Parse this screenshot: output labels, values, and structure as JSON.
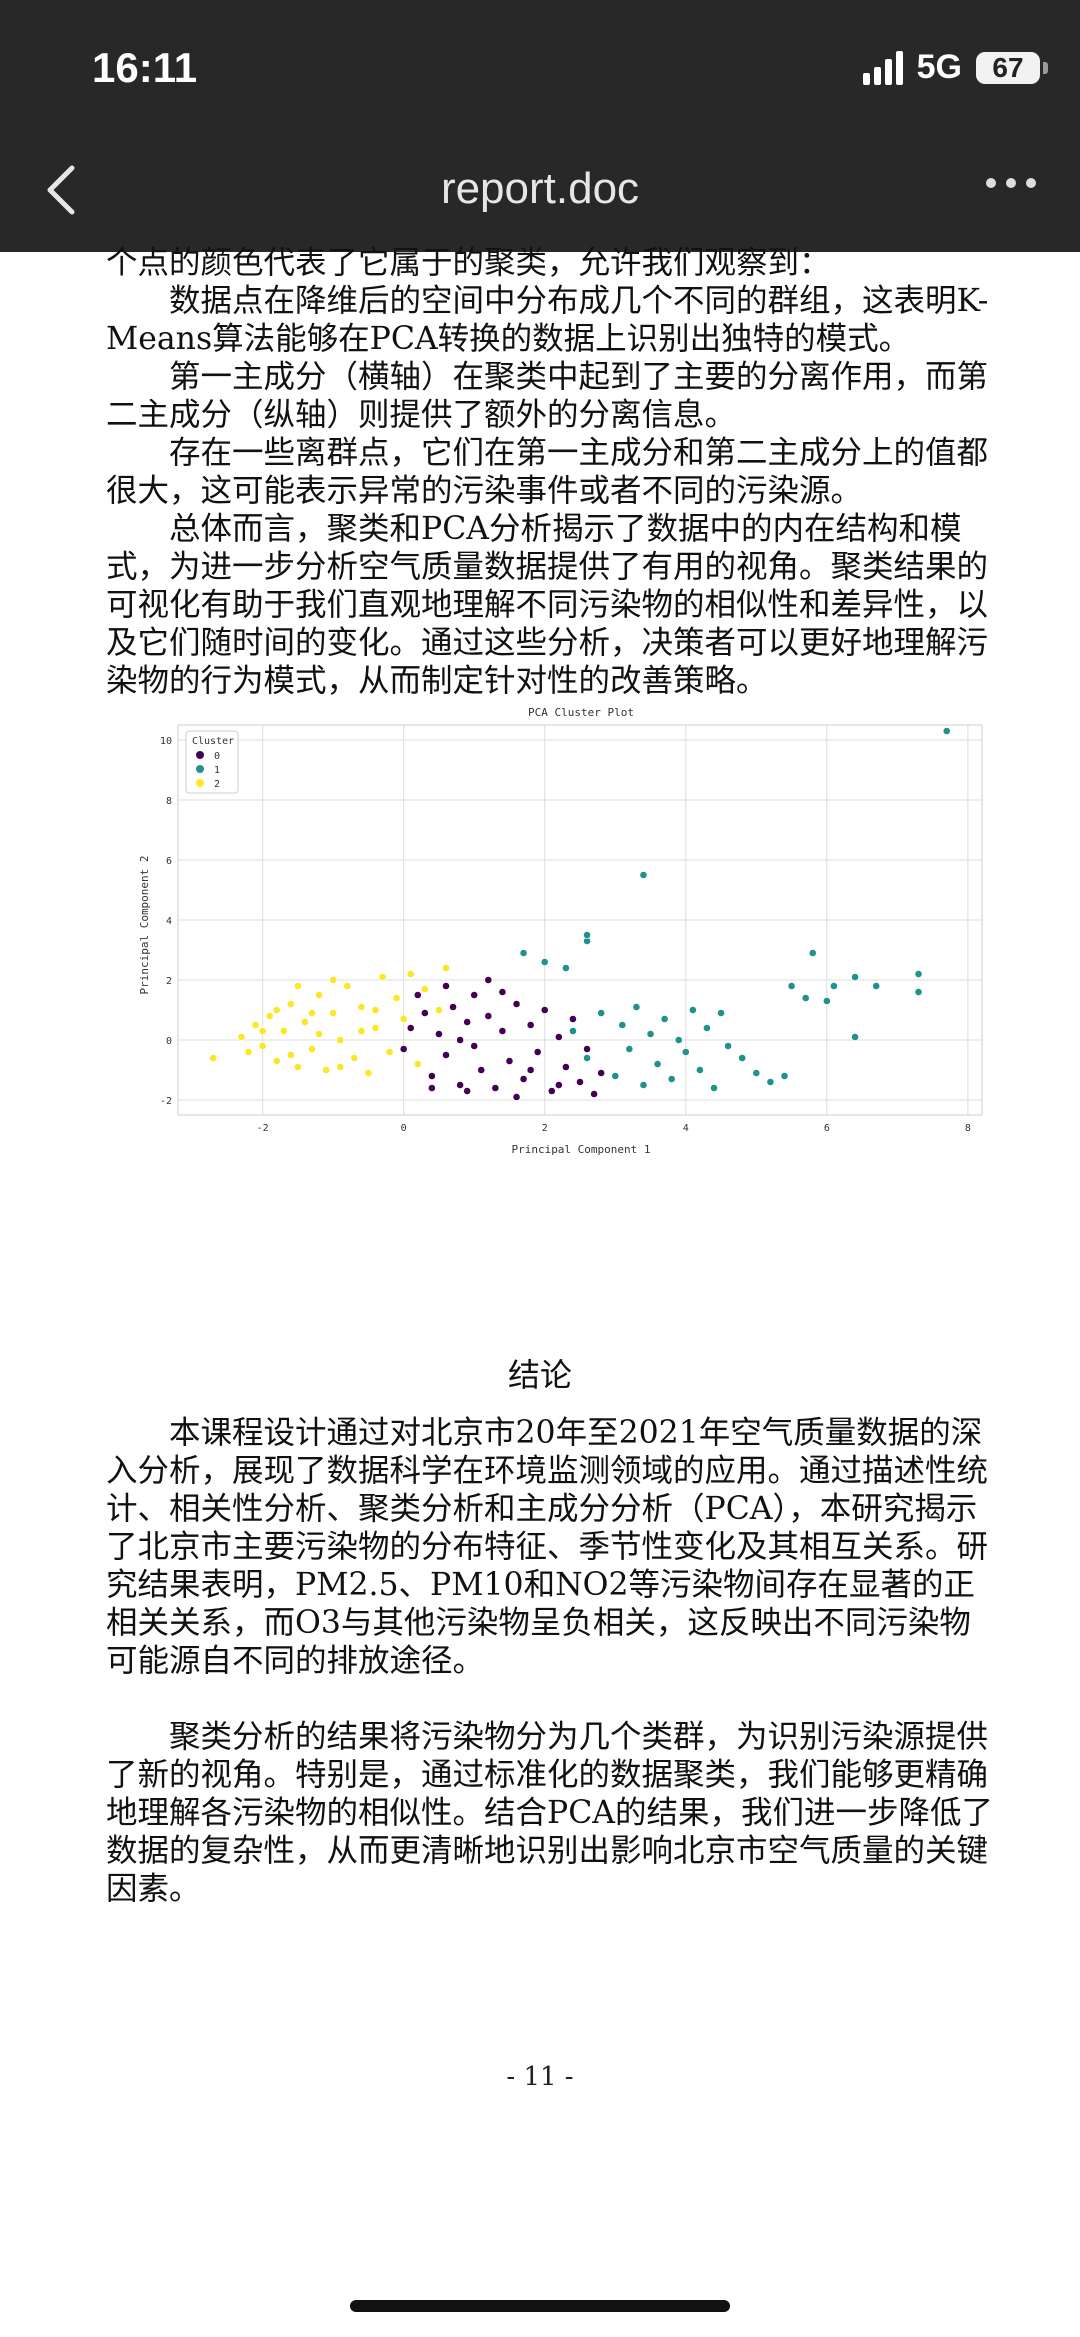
{
  "status_bar": {
    "time": "16:11",
    "network": "5G",
    "battery": "67"
  },
  "nav": {
    "title": "report.doc",
    "back_icon": "chevron-left-icon",
    "more_icon": "more-horizontal-icon"
  },
  "document": {
    "para_top": [
      "个点的颜色代表了它属于的聚类，允许我们观察到：",
      "数据点在降维后的空间中分布成几个不同的群组，这表明K-Means算法能够在PCA转换的数据上识别出独特的模式。",
      "第一主成分（横轴）在聚类中起到了主要的分离作用，而第二主成分（纵轴）则提供了额外的分离信息。",
      "存在一些离群点，它们在第一主成分和第二主成分上的值都很大，这可能表示异常的污染事件或者不同的污染源。",
      "总体而言，聚类和PCA分析揭示了数据中的内在结构和模式，为进一步分析空气质量数据提供了有用的视角。聚类结果的可视化有助于我们直观地理解不同污染物的相似性和差异性，以及它们随时间的变化。通过这些分析，决策者可以更好地理解污染物的行为模式，从而制定针对性的改善策略。"
    ],
    "heading": "结论",
    "para_bottom": [
      "本课程设计通过对北京市20年至2021年空气质量数据的深入分析，展现了数据科学在环境监测领域的应用。通过描述性统计、相关性分析、聚类分析和主成分分析（PCA），本研究揭示了北京市主要污染物的分布特征、季节性变化及其相互关系。研究结果表明，PM2.5、PM10和NO2等污染物间存在显著的正相关关系，而O3与其他污染物呈负相关，这反映出不同污染物可能源自不同的排放途径。",
      "聚类分析的结果将污染物分为几个类群，为识别污染源提供了新的视角。特别是，通过标准化的数据聚类，我们能够更精确地理解各污染物的相似性。结合PCA的结果，我们进一步降低了数据的复杂性，从而更清晰地识别出影响北京市空气质量的关键因素。"
    ],
    "page_number": "- 11 -"
  },
  "chart_data": {
    "type": "scatter",
    "title": "PCA Cluster Plot",
    "xlabel": "Principal Component 1",
    "ylabel": "Principal Component 2",
    "xlim": [
      -3.2,
      8.2
    ],
    "ylim": [
      -2.5,
      10.5
    ],
    "x_ticks": [
      "-2",
      "0",
      "2",
      "4",
      "6",
      "8"
    ],
    "y_ticks": [
      "-2",
      "0",
      "2",
      "4",
      "6",
      "8",
      "10"
    ],
    "grid": true,
    "legend_title": "Cluster",
    "legend_position": "top-left",
    "series": [
      {
        "name": "0",
        "color": "#440154",
        "points": [
          [
            0.0,
            -0.3
          ],
          [
            0.1,
            0.4
          ],
          [
            0.2,
            -0.8
          ],
          [
            0.3,
            0.9
          ],
          [
            0.4,
            -1.2
          ],
          [
            0.5,
            0.2
          ],
          [
            0.6,
            -0.5
          ],
          [
            0.7,
            1.1
          ],
          [
            0.8,
            -1.5
          ],
          [
            0.9,
            0.6
          ],
          [
            1.0,
            -0.2
          ],
          [
            1.0,
            1.5
          ],
          [
            1.1,
            -1.0
          ],
          [
            1.2,
            0.8
          ],
          [
            1.3,
            -1.6
          ],
          [
            1.4,
            0.3
          ],
          [
            1.5,
            -0.7
          ],
          [
            1.6,
            1.2
          ],
          [
            1.7,
            -1.3
          ],
          [
            1.8,
            0.5
          ],
          [
            1.9,
            -0.4
          ],
          [
            2.0,
            1.0
          ],
          [
            2.1,
            -1.7
          ],
          [
            2.2,
            0.1
          ],
          [
            2.3,
            -0.9
          ],
          [
            2.4,
            0.7
          ],
          [
            2.5,
            -1.4
          ],
          [
            2.6,
            -0.3
          ],
          [
            2.7,
            -1.8
          ],
          [
            2.8,
            -1.1
          ],
          [
            0.2,
            1.5
          ],
          [
            0.6,
            1.8
          ],
          [
            1.2,
            2.0
          ],
          [
            0.9,
            -1.7
          ],
          [
            1.6,
            -1.9
          ],
          [
            0.4,
            -1.6
          ],
          [
            1.4,
            1.6
          ],
          [
            1.8,
            -1.0
          ],
          [
            2.2,
            -1.5
          ],
          [
            0.8,
            0.0
          ]
        ]
      },
      {
        "name": "1",
        "color": "#21918c",
        "points": [
          [
            2.4,
            0.3
          ],
          [
            2.6,
            -0.6
          ],
          [
            2.8,
            0.9
          ],
          [
            3.0,
            -1.2
          ],
          [
            3.1,
            0.5
          ],
          [
            3.2,
            -0.3
          ],
          [
            3.3,
            1.1
          ],
          [
            3.4,
            -1.5
          ],
          [
            3.5,
            0.2
          ],
          [
            3.6,
            -0.8
          ],
          [
            3.7,
            0.7
          ],
          [
            3.8,
            -1.3
          ],
          [
            3.9,
            0.0
          ],
          [
            4.0,
            -0.4
          ],
          [
            4.1,
            1.0
          ],
          [
            4.2,
            -1.0
          ],
          [
            4.3,
            0.4
          ],
          [
            4.4,
            -1.6
          ],
          [
            4.5,
            0.9
          ],
          [
            4.6,
            -0.2
          ],
          [
            4.8,
            -0.6
          ],
          [
            5.0,
            -1.1
          ],
          [
            5.2,
            -1.4
          ],
          [
            5.4,
            -1.2
          ],
          [
            1.7,
            2.9
          ],
          [
            2.0,
            2.6
          ],
          [
            2.3,
            2.4
          ],
          [
            2.6,
            3.3
          ],
          [
            2.6,
            3.5
          ],
          [
            3.4,
            5.5
          ],
          [
            5.5,
            1.8
          ],
          [
            5.7,
            1.4
          ],
          [
            5.8,
            2.9
          ],
          [
            6.0,
            1.3
          ],
          [
            6.1,
            1.8
          ],
          [
            6.4,
            2.1
          ],
          [
            6.4,
            0.1
          ],
          [
            6.7,
            1.8
          ],
          [
            7.3,
            2.2
          ],
          [
            7.3,
            1.6
          ],
          [
            7.7,
            10.3
          ]
        ]
      },
      {
        "name": "2",
        "color": "#fde725",
        "points": [
          [
            -2.7,
            -0.6
          ],
          [
            -2.3,
            0.1
          ],
          [
            -2.2,
            -0.4
          ],
          [
            -2.1,
            0.5
          ],
          [
            -2.0,
            -0.2
          ],
          [
            -1.9,
            0.8
          ],
          [
            -1.8,
            -0.7
          ],
          [
            -1.7,
            0.3
          ],
          [
            -1.6,
            1.2
          ],
          [
            -1.5,
            -0.9
          ],
          [
            -1.4,
            0.6
          ],
          [
            -1.3,
            -0.3
          ],
          [
            -1.2,
            1.5
          ],
          [
            -1.1,
            -1.0
          ],
          [
            -1.0,
            0.9
          ],
          [
            -0.9,
            0.0
          ],
          [
            -0.8,
            1.8
          ],
          [
            -0.7,
            -0.6
          ],
          [
            -0.6,
            1.1
          ],
          [
            -0.5,
            -1.1
          ],
          [
            -0.4,
            0.4
          ],
          [
            -0.3,
            2.1
          ],
          [
            -0.2,
            -0.4
          ],
          [
            -0.1,
            1.4
          ],
          [
            0.0,
            0.7
          ],
          [
            0.1,
            2.2
          ],
          [
            0.2,
            -0.8
          ],
          [
            0.3,
            1.7
          ],
          [
            0.5,
            1.0
          ],
          [
            0.6,
            2.4
          ],
          [
            -1.8,
            1.0
          ],
          [
            -1.5,
            1.8
          ],
          [
            -1.2,
            0.2
          ],
          [
            -1.0,
            2.0
          ],
          [
            -0.6,
            0.3
          ],
          [
            -0.9,
            -0.9
          ],
          [
            -2.0,
            0.3
          ],
          [
            -1.6,
            -0.5
          ],
          [
            -1.3,
            0.9
          ],
          [
            -0.4,
            1.0
          ]
        ]
      }
    ]
  }
}
